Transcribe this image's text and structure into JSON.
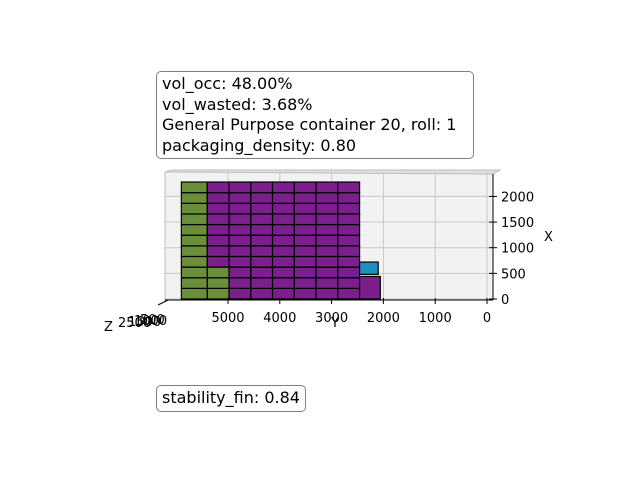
{
  "info": {
    "vol_occ": "vol_occ: 48.00%",
    "vol_wasted": "vol_wasted: 3.68%",
    "container": "General Purpose container 20, roll: 1",
    "packaging_density": "packaging_density: 0.80",
    "stability": "stability_fin: 0.84"
  },
  "chart_data": {
    "type": "3d-box-packing",
    "xlabel": "Y",
    "ylabel": "X",
    "zlabel": "Z",
    "y_ticks": [
      "5000",
      "4000",
      "3000",
      "2000",
      "1000",
      "0"
    ],
    "y_tick_values": [
      5000,
      4000,
      3000,
      2000,
      1000,
      0
    ],
    "x_ticks": [
      "0",
      "500",
      "1000",
      "1500",
      "2000"
    ],
    "x_tick_values": [
      0,
      500,
      1000,
      1500,
      2000
    ],
    "z_ticks": [
      "2500",
      "1500",
      "1000",
      "500"
    ],
    "grid": true,
    "colors": {
      "green": "#6b8e3a",
      "purple": "#7a1f8c",
      "blue": "#1f8fbf",
      "edge": "#000000",
      "pane": "#f2f2f2",
      "grid": "#c8c8c8"
    },
    "columns": [
      {
        "y_from": 5900,
        "y_to": 5400,
        "rows": 11,
        "color_by_row": [
          "green",
          "green",
          "green",
          "green",
          "green",
          "green",
          "green",
          "green",
          "green",
          "green",
          "green"
        ]
      },
      {
        "y_from": 5400,
        "y_to": 4980,
        "rows": 11,
        "color_by_row": [
          "green",
          "green",
          "green",
          "purple",
          "purple",
          "purple",
          "purple",
          "purple",
          "purple",
          "purple",
          "purple"
        ]
      },
      {
        "y_from": 4980,
        "y_to": 4560,
        "rows": 11,
        "color": "purple"
      },
      {
        "y_from": 4560,
        "y_to": 4140,
        "rows": 11,
        "color": "purple"
      },
      {
        "y_from": 4140,
        "y_to": 3720,
        "rows": 11,
        "color": "purple"
      },
      {
        "y_from": 3720,
        "y_to": 3300,
        "rows": 11,
        "color": "purple"
      },
      {
        "y_from": 3300,
        "y_to": 2880,
        "rows": 11,
        "color": "purple"
      },
      {
        "y_from": 2880,
        "y_to": 2460,
        "rows": 11,
        "color": "purple"
      }
    ],
    "extra_boxes": [
      {
        "y_from": 2460,
        "y_to": 2060,
        "x_from": 0,
        "x_to": 440,
        "color": "purple"
      },
      {
        "y_from": 2460,
        "y_to": 2100,
        "x_from": 480,
        "x_to": 720,
        "color": "blue"
      }
    ],
    "x_max": 2280
  }
}
